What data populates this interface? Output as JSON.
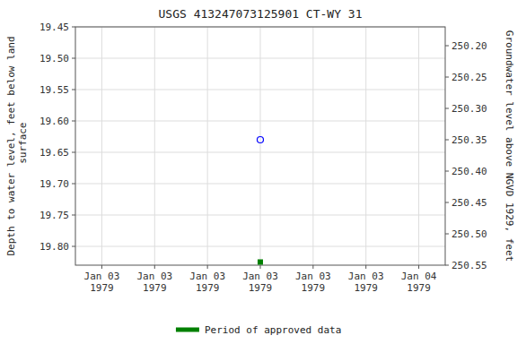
{
  "chart_data": {
    "type": "scatter",
    "title": "USGS 413247073125901  CT-WY    31",
    "y_label": "Depth to water level, feet below land\n surface",
    "y2_label": "Groundwater level above NGVD 1929, feet",
    "categories": [
      "Jan 03\n1979",
      "Jan 03\n1979",
      "Jan 03\n1979",
      "Jan 03\n1979",
      "Jan 03\n1979",
      "Jan 03\n1979",
      "Jan 04\n1979"
    ],
    "series": [
      {
        "color": "#0000ff",
        "marker": "open-circle",
        "values": [
          null,
          null,
          null,
          19.63,
          null,
          null,
          null
        ]
      },
      {
        "name": "Period of approved data",
        "color": "#008000",
        "marker": "square",
        "values": [
          null,
          null,
          null,
          19.825,
          null,
          null,
          null
        ]
      }
    ],
    "ylim": [
      19.83,
      19.45
    ],
    "yticks": [
      19.45,
      {
        "value": 19.5,
        "label": "19.50"
      },
      19.55,
      {
        "value": 19.6,
        "label": "19.60"
      },
      19.65,
      {
        "value": 19.7,
        "label": "19.70"
      },
      19.75,
      {
        "value": 19.8,
        "label": "19.80"
      }
    ],
    "y2lim": [
      250.55,
      250.17
    ],
    "y2ticks": [
      250.55,
      {
        "value": 250.5,
        "label": "250.50"
      },
      250.45,
      {
        "value": 250.4,
        "label": "250.40"
      },
      250.35,
      {
        "value": 250.3,
        "label": "250.30"
      },
      250.25,
      {
        "value": 250.2,
        "label": "250.20"
      }
    ],
    "grid": true,
    "legend": "bottom"
  }
}
